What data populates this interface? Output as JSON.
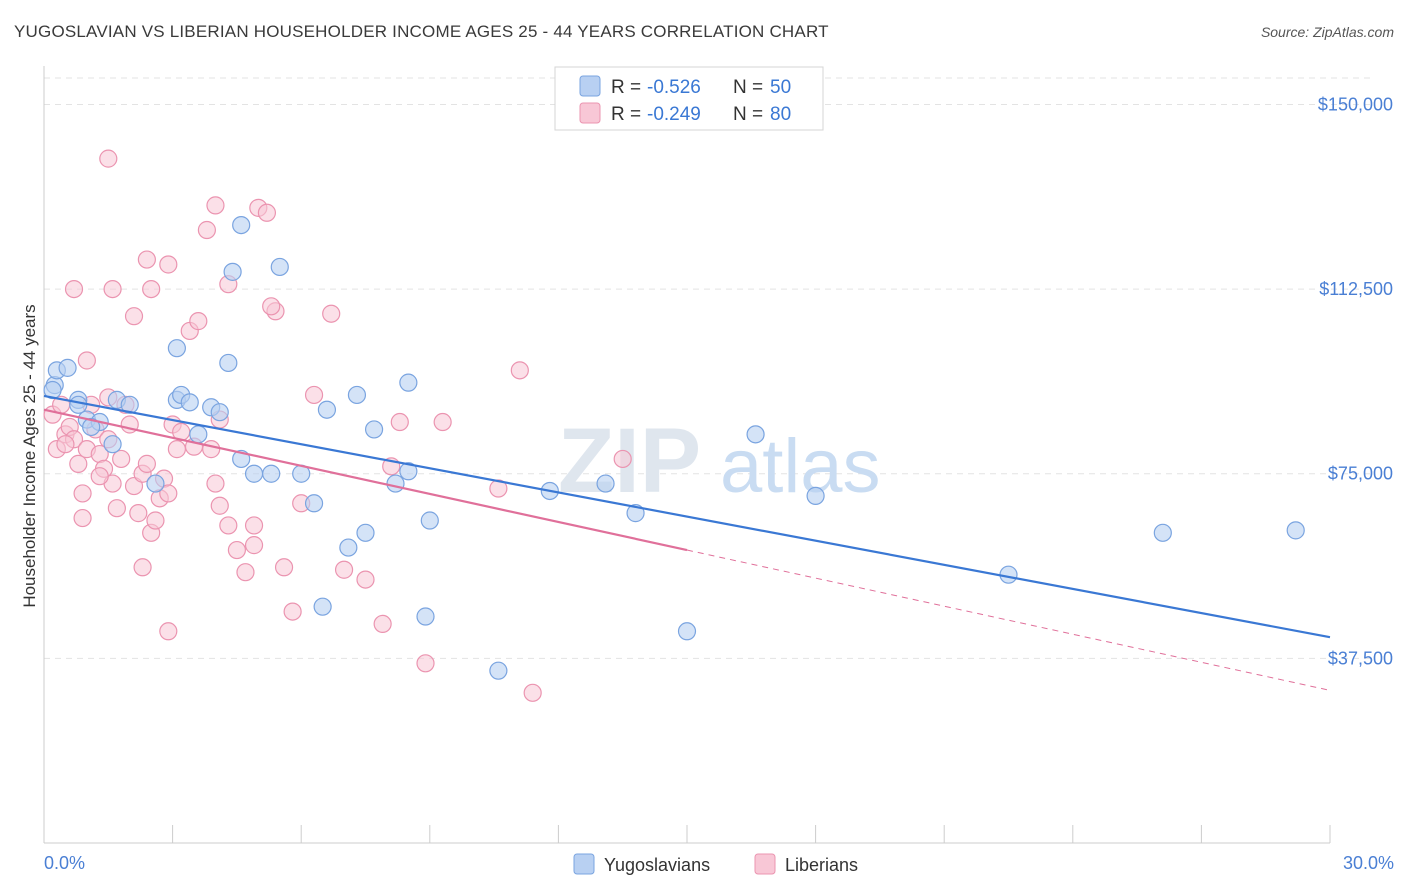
{
  "title": "YUGOSLAVIAN VS LIBERIAN HOUSEHOLDER INCOME AGES 25 - 44 YEARS CORRELATION CHART",
  "source": "Source: ZipAtlas.com",
  "watermark": {
    "zip": "ZIP",
    "atlas": "atlas"
  },
  "legend": {
    "rows": [
      {
        "r_label": "R = ",
        "r_value": "-0.526",
        "n_label": "N = ",
        "n_value": "50"
      },
      {
        "r_label": "R = ",
        "r_value": "-0.249",
        "n_label": "N = ",
        "n_value": "80"
      }
    ]
  },
  "colors": {
    "yugoslavians_fill": "#b8d0f2",
    "yugoslavians_stroke": "#7aa4e0",
    "yugoslavians_line": "#3a78d4",
    "liberians_fill": "#f8c7d6",
    "liberians_stroke": "#eb94b0",
    "liberians_line": "#e0709a",
    "tick_label": "#4a7fd4",
    "grid": "#e3e3e3"
  },
  "chart_data": {
    "type": "scatter",
    "title": "YUGOSLAVIAN VS LIBERIAN HOUSEHOLDER INCOME AGES 25 - 44 YEARS CORRELATION CHART",
    "xlabel": "",
    "ylabel": "Householder Income Ages 25 - 44 years",
    "xlim": [
      0,
      30
    ],
    "ylim": [
      0,
      157000
    ],
    "x_tick_labels": [
      "0.0%",
      "30.0%"
    ],
    "y_ticks": [
      37500,
      75000,
      112500,
      150000
    ],
    "y_tick_labels": [
      "$37,500",
      "$75,000",
      "$112,500",
      "$150,000"
    ],
    "grid": true,
    "legend_position": "top-center",
    "series": [
      {
        "name": "Yugoslavians",
        "r": -0.526,
        "n": 50,
        "trend": {
          "x": [
            0,
            30
          ],
          "y": [
            90800,
            41800
          ]
        },
        "points": [
          [
            0.25,
            93000
          ],
          [
            0.3,
            96000
          ],
          [
            0.55,
            96500
          ],
          [
            0.8,
            90000
          ],
          [
            1.0,
            86000
          ],
          [
            1.3,
            85500
          ],
          [
            1.1,
            84500
          ],
          [
            1.7,
            90000
          ],
          [
            2.0,
            89000
          ],
          [
            1.6,
            81000
          ],
          [
            3.1,
            100500
          ],
          [
            3.1,
            90000
          ],
          [
            3.2,
            91000
          ],
          [
            3.4,
            89500
          ],
          [
            3.6,
            83000
          ],
          [
            3.9,
            88500
          ],
          [
            4.1,
            87500
          ],
          [
            4.3,
            97500
          ],
          [
            4.4,
            116000
          ],
          [
            4.6,
            125500
          ],
          [
            5.5,
            117000
          ],
          [
            4.6,
            78000
          ],
          [
            4.9,
            75000
          ],
          [
            5.3,
            75000
          ],
          [
            6.0,
            75000
          ],
          [
            6.3,
            69000
          ],
          [
            6.6,
            88000
          ],
          [
            7.3,
            91000
          ],
          [
            7.7,
            84000
          ],
          [
            8.5,
            75500
          ],
          [
            8.5,
            93500
          ],
          [
            6.5,
            48000
          ],
          [
            8.9,
            46000
          ],
          [
            7.1,
            60000
          ],
          [
            7.5,
            63000
          ],
          [
            8.2,
            73000
          ],
          [
            9.0,
            65500
          ],
          [
            10.6,
            35000
          ],
          [
            11.8,
            71500
          ],
          [
            13.1,
            73000
          ],
          [
            13.8,
            67000
          ],
          [
            15.0,
            43000
          ],
          [
            16.6,
            83000
          ],
          [
            18.0,
            70500
          ],
          [
            22.5,
            54500
          ],
          [
            26.1,
            63000
          ],
          [
            29.2,
            63500
          ],
          [
            0.2,
            92000
          ],
          [
            0.8,
            89000
          ],
          [
            2.6,
            73000
          ]
        ]
      },
      {
        "name": "Liberians",
        "r": -0.249,
        "n": 80,
        "trend": {
          "x": [
            0,
            15
          ],
          "y": [
            88000,
            59500
          ],
          "dashed_to": [
            30,
            31000
          ]
        },
        "points": [
          [
            0.2,
            87000
          ],
          [
            0.3,
            80000
          ],
          [
            0.4,
            89000
          ],
          [
            0.5,
            83000
          ],
          [
            0.6,
            84500
          ],
          [
            0.7,
            82000
          ],
          [
            0.8,
            77000
          ],
          [
            0.9,
            71000
          ],
          [
            1.0,
            80000
          ],
          [
            1.1,
            89000
          ],
          [
            1.2,
            84000
          ],
          [
            1.3,
            79000
          ],
          [
            1.4,
            76000
          ],
          [
            1.5,
            82000
          ],
          [
            1.6,
            73000
          ],
          [
            1.7,
            68000
          ],
          [
            1.8,
            78000
          ],
          [
            1.9,
            89000
          ],
          [
            2.0,
            85000
          ],
          [
            2.1,
            72500
          ],
          [
            2.2,
            67000
          ],
          [
            2.3,
            75000
          ],
          [
            2.4,
            77000
          ],
          [
            2.5,
            63000
          ],
          [
            2.6,
            65500
          ],
          [
            2.7,
            70000
          ],
          [
            2.8,
            74000
          ],
          [
            2.9,
            71000
          ],
          [
            3.0,
            85000
          ],
          [
            3.1,
            80000
          ],
          [
            3.2,
            83500
          ],
          [
            3.4,
            104000
          ],
          [
            3.6,
            106000
          ],
          [
            3.8,
            124500
          ],
          [
            3.9,
            80000
          ],
          [
            4.0,
            73000
          ],
          [
            4.1,
            68500
          ],
          [
            4.3,
            64500
          ],
          [
            4.5,
            59500
          ],
          [
            4.7,
            55000
          ],
          [
            4.9,
            64500
          ],
          [
            5.0,
            129000
          ],
          [
            5.2,
            128000
          ],
          [
            5.4,
            108000
          ],
          [
            5.6,
            56000
          ],
          [
            5.8,
            47000
          ],
          [
            6.0,
            69000
          ],
          [
            6.3,
            91000
          ],
          [
            6.7,
            107500
          ],
          [
            7.0,
            55500
          ],
          [
            7.5,
            53500
          ],
          [
            7.9,
            44500
          ],
          [
            8.1,
            76500
          ],
          [
            8.3,
            85500
          ],
          [
            8.9,
            36500
          ],
          [
            9.3,
            85500
          ],
          [
            10.6,
            72000
          ],
          [
            11.1,
            96000
          ],
          [
            11.4,
            30500
          ],
          [
            13.5,
            78000
          ],
          [
            0.7,
            112500
          ],
          [
            1.6,
            112500
          ],
          [
            2.1,
            107000
          ],
          [
            2.4,
            118500
          ],
          [
            2.9,
            117500
          ],
          [
            2.5,
            112500
          ],
          [
            1.5,
            139000
          ],
          [
            4.0,
            129500
          ],
          [
            4.3,
            113500
          ],
          [
            5.3,
            109000
          ],
          [
            1.0,
            98000
          ],
          [
            1.5,
            90500
          ],
          [
            2.3,
            56000
          ],
          [
            2.9,
            43000
          ],
          [
            0.5,
            81000
          ],
          [
            1.3,
            74500
          ],
          [
            3.5,
            80500
          ],
          [
            0.9,
            66000
          ],
          [
            4.1,
            86000
          ],
          [
            4.9,
            60500
          ]
        ]
      }
    ]
  },
  "bottom_legend": [
    "Yugoslavians",
    "Liberians"
  ]
}
